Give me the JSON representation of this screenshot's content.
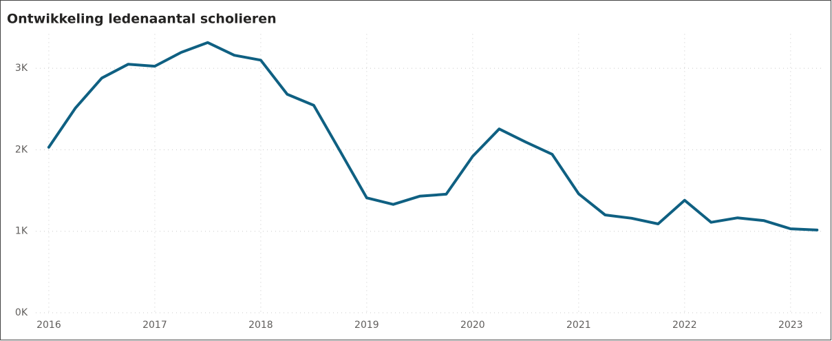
{
  "chart_data": {
    "type": "line",
    "title": "Ontwikkeling ledenaantal scholieren",
    "x": [
      2016,
      2016.25,
      2016.5,
      2016.75,
      2017,
      2017.25,
      2017.5,
      2017.75,
      2018,
      2018.25,
      2018.5,
      2018.75,
      2019,
      2019.25,
      2019.5,
      2019.75,
      2020,
      2020.25,
      2020.5,
      2020.75,
      2021,
      2021.25,
      2021.5,
      2021.75,
      2022,
      2022.25,
      2022.5,
      2022.75,
      2023,
      2023.25
    ],
    "series": [
      {
        "name": "Scholieren",
        "color": "#0f6082",
        "values": [
          2030,
          2510,
          2880,
          3050,
          3025,
          3195,
          3315,
          3160,
          3100,
          2680,
          2545,
          1980,
          1410,
          1330,
          1430,
          1455,
          1920,
          2255,
          2095,
          1945,
          1460,
          1200,
          1160,
          1090,
          1380,
          1110,
          1165,
          1130,
          1030,
          1015
        ]
      }
    ],
    "xlim": [
      2015.877,
      2023.3
    ],
    "xticks": [
      2016,
      2017,
      2018,
      2019,
      2020,
      2021,
      2022,
      2023
    ],
    "ylim": [
      0,
      3420
    ],
    "yticks": [
      {
        "value": 0,
        "label": "0K"
      },
      {
        "value": 1000,
        "label": "1K"
      },
      {
        "value": 2000,
        "label": "2K"
      },
      {
        "value": 3000,
        "label": "3K"
      }
    ],
    "grid": true
  }
}
